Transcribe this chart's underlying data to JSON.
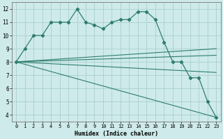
{
  "xlabel": "Humidex (Indice chaleur)",
  "background_color": "#ceeaea",
  "line_color": "#2e7d6e",
  "grid_color": "#aacfcf",
  "xlim": [
    -0.5,
    23.5
  ],
  "ylim": [
    3.5,
    12.5
  ],
  "yticks": [
    4,
    5,
    6,
    7,
    8,
    9,
    10,
    11,
    12
  ],
  "xticks": [
    0,
    1,
    2,
    3,
    4,
    5,
    6,
    7,
    8,
    9,
    10,
    11,
    12,
    13,
    14,
    15,
    16,
    17,
    18,
    19,
    20,
    21,
    22,
    23
  ],
  "curve_x": [
    0,
    1,
    2,
    3,
    4,
    5,
    6,
    7,
    8,
    9,
    10,
    11,
    12,
    13,
    14,
    15,
    16,
    17,
    18,
    19,
    20,
    21,
    22,
    23
  ],
  "curve_y": [
    8.0,
    9.0,
    10.0,
    10.0,
    11.0,
    11.0,
    11.0,
    12.0,
    11.0,
    10.8,
    10.5,
    11.0,
    11.2,
    11.2,
    11.8,
    11.8,
    11.2,
    9.5,
    8.0,
    8.0,
    6.8,
    6.8,
    5.0,
    3.8
  ],
  "fan_lines": [
    {
      "x": [
        0,
        23
      ],
      "y": [
        8.0,
        9.0
      ]
    },
    {
      "x": [
        0,
        23
      ],
      "y": [
        8.0,
        8.5
      ]
    },
    {
      "x": [
        0,
        23
      ],
      "y": [
        8.0,
        7.2
      ]
    },
    {
      "x": [
        0,
        23
      ],
      "y": [
        8.0,
        3.8
      ]
    }
  ]
}
